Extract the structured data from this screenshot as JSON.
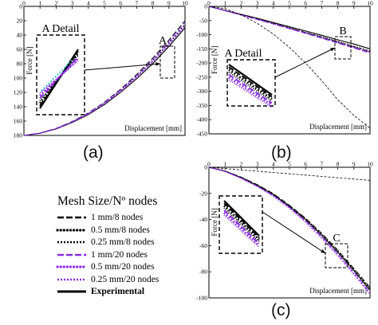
{
  "legend": {
    "title": "Mesh Size/Nº nodes",
    "entries": [
      {
        "label": "1 mm/8 nodes",
        "color": "#000000",
        "style": "dash"
      },
      {
        "label": "0.5 mm/8 nodes",
        "color": "#000000",
        "style": "dot-large"
      },
      {
        "label": "0.25 mm/8 nodes",
        "color": "#000000",
        "style": "dot-small"
      },
      {
        "label": "1 mm/20 nodes",
        "color": "#8a2be2",
        "style": "dash"
      },
      {
        "label": "0.5 mm/20 nodes",
        "color": "#8a2be2",
        "style": "dot-large"
      },
      {
        "label": "0.25 mm/20 nodes",
        "color": "#8a2be2",
        "style": "dot-small"
      },
      {
        "label": "Experimental",
        "color": "#000000",
        "style": "solid"
      }
    ]
  },
  "captions": {
    "a": "(a)",
    "b": "(b)",
    "c": "(c)"
  },
  "chart_data": [
    {
      "id": "a",
      "type": "line",
      "xlabel": "Displacement [mm]",
      "ylabel": "Force [N]",
      "xlim": [
        0,
        10
      ],
      "ylim": [
        0,
        180
      ],
      "xticks": [
        "0",
        "1",
        "2",
        "3",
        "4",
        "5",
        "6",
        "7",
        "8",
        "9",
        "10"
      ],
      "yticks": [
        "0",
        "20",
        "40",
        "60",
        "80",
        "100",
        "120",
        "140",
        "160",
        "180"
      ],
      "detail_label": "A Detail",
      "marker_label": "A",
      "x": [
        0,
        1,
        2,
        3,
        4,
        5,
        6,
        7,
        8,
        9,
        10
      ],
      "series_values": {
        "Experimental": [
          0,
          3,
          9,
          18,
          29,
          43,
          60,
          79,
          100,
          124,
          150
        ],
        "1 mm/8 nodes": [
          0,
          3.3,
          9.8,
          19.5,
          31.5,
          46.5,
          64.5,
          85,
          108,
          133,
          160
        ],
        "0.5 mm/8 nodes": [
          0,
          3.2,
          9.5,
          19,
          30.5,
          45,
          62.5,
          82.5,
          104.5,
          129,
          155
        ],
        "0.25 mm/8 nodes": [
          0,
          3.1,
          9.3,
          18.6,
          30,
          44.3,
          61.5,
          81,
          102.5,
          126.5,
          152
        ],
        "1 mm/20 nodes": [
          0,
          3.25,
          9.6,
          19.2,
          31,
          45.8,
          63.5,
          83.5,
          106,
          131,
          158
        ],
        "0.5 mm/20 nodes": [
          0,
          3.15,
          9.4,
          18.8,
          30.2,
          44.6,
          62,
          81.8,
          103.5,
          127.8,
          153.5
        ],
        "0.25 mm/20 nodes": [
          0,
          3.05,
          9.2,
          18.4,
          29.6,
          43.8,
          61,
          80.3,
          101.8,
          125.5,
          151
        ]
      }
    },
    {
      "id": "b",
      "type": "line",
      "xlabel": "Displacement [mm]",
      "ylabel": "Force [N]",
      "xlim": [
        0,
        10
      ],
      "ylim": [
        -450,
        0
      ],
      "xticks": [
        "0",
        "1",
        "2",
        "3",
        "4",
        "5",
        "6",
        "7",
        "8",
        "9",
        "10"
      ],
      "yticks": [
        "0",
        "-50",
        "-100",
        "-150",
        "-200",
        "-250",
        "-300",
        "-350",
        "-400",
        "-450"
      ],
      "detail_label": "A Detail",
      "marker_label": "B",
      "x": [
        0,
        1,
        2,
        3,
        4,
        5,
        6,
        7,
        8,
        9,
        10
      ],
      "series_values": {
        "Experimental": [
          0,
          -14,
          -28,
          -42,
          -57,
          -72,
          -87,
          -102,
          -118,
          -133,
          -150
        ],
        "1 mm/8 nodes": [
          0,
          -15,
          -30,
          -45,
          -61,
          -77,
          -93,
          -110,
          -127,
          -144,
          -162
        ],
        "0.5 mm/8 nodes": [
          0,
          -15,
          -29.5,
          -44.5,
          -60,
          -76,
          -92,
          -108,
          -125,
          -142,
          -159
        ],
        "0.25 mm/8 nodes": [
          0,
          -14.8,
          -29.2,
          -44,
          -59.3,
          -75,
          -91,
          -107,
          -123.5,
          -140,
          -157
        ],
        "1 mm/20 nodes": [
          0,
          -15.5,
          -31,
          -46.5,
          -62.5,
          -79,
          -95.5,
          -112.5,
          -130,
          -147.5,
          -165
        ],
        "0.5 mm/20 nodes": [
          0,
          -15.2,
          -30.5,
          -45.8,
          -61.5,
          -78,
          -94,
          -111,
          -128,
          -145,
          -162.5
        ],
        "0.25 mm/20 nodes": [
          0,
          -15,
          -30,
          -45.2,
          -60.8,
          -77,
          -93,
          -109.5,
          -126.5,
          -143.5,
          -160.5
        ],
        "Unlabeled dashed": [
          0,
          -8,
          -30,
          -60,
          -98,
          -145,
          -200,
          -262,
          -330,
          -385,
          -430
        ]
      }
    },
    {
      "id": "c",
      "type": "line",
      "xlabel": "Displacement [mm]",
      "ylabel": "Force [N]",
      "xlim": [
        0,
        10
      ],
      "ylim": [
        -100,
        0
      ],
      "xticks": [
        "0",
        "1",
        "2",
        "3",
        "4",
        "5",
        "6",
        "7",
        "8",
        "9",
        "10"
      ],
      "yticks": [
        "0",
        "-20",
        "-40",
        "-60",
        "-80",
        "-100"
      ],
      "detail_label": "",
      "marker_label": "C",
      "x": [
        0,
        1,
        2,
        3,
        4,
        5,
        6,
        7,
        8,
        9,
        10
      ],
      "series_values": {
        "Experimental": [
          0,
          -3,
          -8,
          -14,
          -21,
          -30,
          -40,
          -52,
          -65,
          -79,
          -94
        ],
        "1 mm/8 nodes": [
          0,
          -2.8,
          -7.5,
          -13.3,
          -20.2,
          -29,
          -39,
          -50.5,
          -63.5,
          -77.5,
          -92
        ],
        "0.5 mm/8 nodes": [
          0,
          -2.9,
          -7.7,
          -13.6,
          -20.6,
          -29.5,
          -39.5,
          -51.2,
          -64.2,
          -78.3,
          -93
        ],
        "0.25 mm/8 nodes": [
          0,
          -3,
          -7.9,
          -13.9,
          -21,
          -30,
          -40.2,
          -52,
          -65,
          -79.2,
          -94.2
        ],
        "1 mm/20 nodes": [
          0,
          -3.1,
          -8.2,
          -14.3,
          -21.5,
          -30.6,
          -41,
          -53,
          -66.2,
          -80.5,
          -95.5
        ],
        "0.5 mm/20 nodes": [
          0,
          -3.2,
          -8.4,
          -14.6,
          -21.9,
          -31.1,
          -41.6,
          -53.8,
          -67.1,
          -81.5,
          -96.6
        ],
        "0.25 mm/20 nodes": [
          0,
          -3.3,
          -8.6,
          -14.9,
          -22.3,
          -31.6,
          -42.2,
          -54.5,
          -67.9,
          -82.4,
          -97.5
        ],
        "Unlabeled dashed": [
          0,
          -1,
          -2,
          -3,
          -4,
          -5,
          -6,
          -7,
          -8,
          -9,
          -10
        ]
      }
    }
  ]
}
